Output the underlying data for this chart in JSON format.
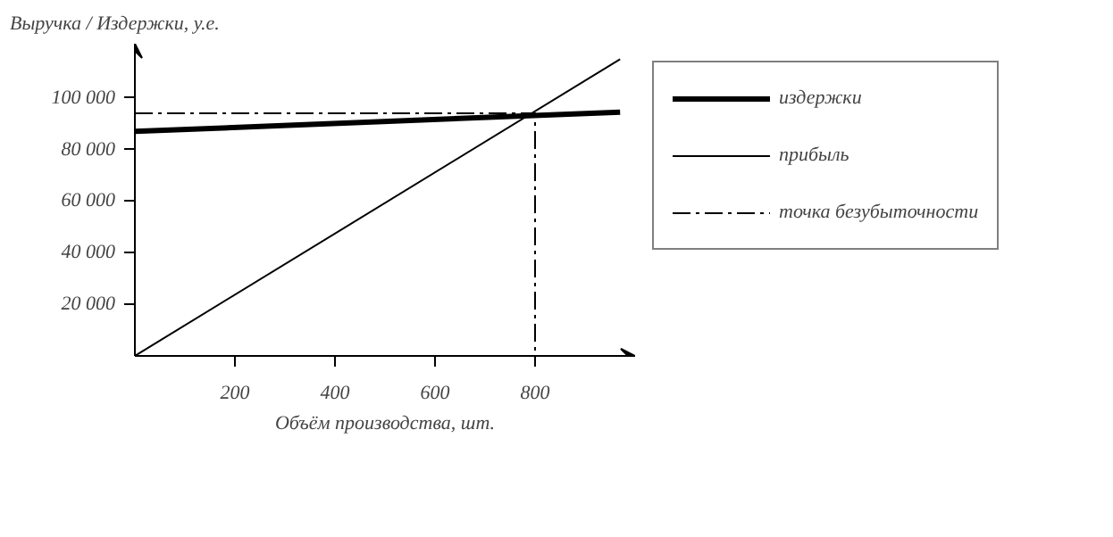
{
  "chart_data": {
    "type": "line",
    "ylabel": "Выручка / Издержки, у.е.",
    "xlabel": "Объём производства, шт.",
    "xlim": [
      0,
      1000
    ],
    "ylim": [
      0,
      121000
    ],
    "xticks": [
      200,
      400,
      600,
      800
    ],
    "yticks": [
      {
        "value": 20000,
        "label": "20 000"
      },
      {
        "value": 40000,
        "label": "40 000"
      },
      {
        "value": 60000,
        "label": "60 000"
      },
      {
        "value": 80000,
        "label": "80 000"
      },
      {
        "value": 100000,
        "label": "100 000"
      }
    ],
    "series": [
      {
        "name": "издержки",
        "color": "#000000",
        "x": [
          0,
          970
        ],
        "values": [
          87000,
          94500
        ]
      },
      {
        "name": "прибыль",
        "color": "#000000",
        "x": [
          0,
          970
        ],
        "values": [
          0,
          115000
        ]
      },
      {
        "name": "точка безубыточности",
        "color": "#000000",
        "x": [
          0,
          800,
          800
        ],
        "values": [
          94000,
          94000,
          0
        ],
        "line_style": "dashed"
      }
    ],
    "grid": false,
    "legend": "right"
  }
}
